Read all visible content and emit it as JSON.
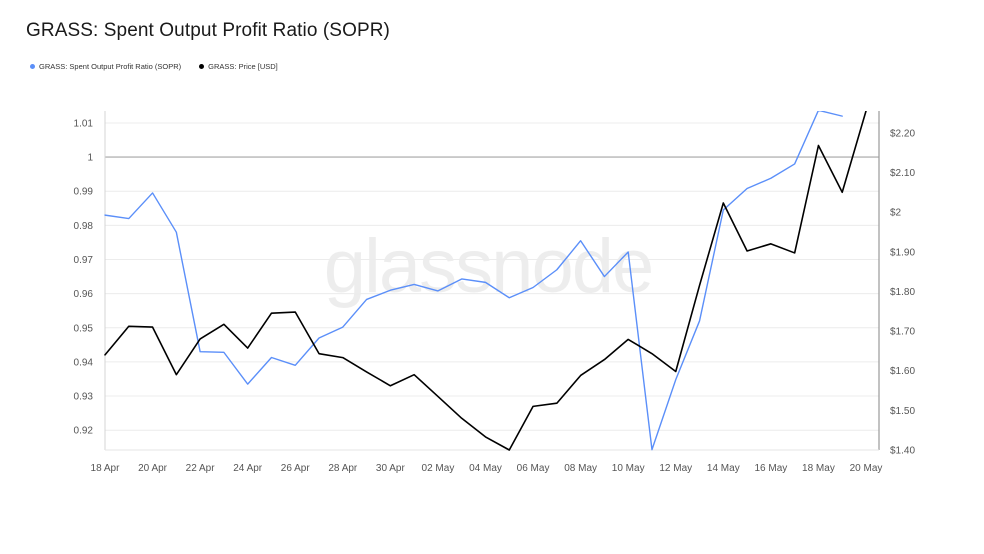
{
  "title": "GRASS: Spent Output Profit Ratio (SOPR)",
  "watermark": "glassnode",
  "legend": [
    {
      "label": "GRASS: Spent Output Profit Ratio (SOPR)",
      "color": "#5b8ff9"
    },
    {
      "label": "GRASS: Price [USD]",
      "color": "#000000"
    }
  ],
  "chart_data": {
    "type": "line",
    "title": "GRASS: Spent Output Profit Ratio (SOPR)",
    "x": [
      "18 Apr",
      "19 Apr",
      "20 Apr",
      "21 Apr",
      "22 Apr",
      "23 Apr",
      "24 Apr",
      "25 Apr",
      "26 Apr",
      "27 Apr",
      "28 Apr",
      "29 Apr",
      "30 Apr",
      "01 May",
      "02 May",
      "03 May",
      "04 May",
      "05 May",
      "06 May",
      "07 May",
      "08 May",
      "09 May",
      "10 May",
      "11 May",
      "12 May",
      "13 May",
      "14 May",
      "15 May",
      "16 May",
      "17 May",
      "18 May",
      "19 May",
      "20 May"
    ],
    "x_tick_labels": [
      "18 Apr",
      "20 Apr",
      "22 Apr",
      "24 Apr",
      "26 Apr",
      "28 Apr",
      "30 Apr",
      "02 May",
      "04 May",
      "06 May",
      "08 May",
      "10 May",
      "12 May",
      "14 May",
      "16 May",
      "18 May",
      "20 May"
    ],
    "y_left": {
      "ylim": [
        0.9142,
        1.0135
      ],
      "ticks": [
        "0.92",
        "0.93",
        "0.94",
        "0.95",
        "0.96",
        "0.97",
        "0.98",
        "0.99",
        "1",
        "1.01"
      ],
      "tick_values": [
        0.92,
        0.93,
        0.94,
        0.95,
        0.96,
        0.97,
        0.98,
        0.99,
        1,
        1.01
      ],
      "reference_line": 1
    },
    "y_right": {
      "ylim": [
        1.4,
        2.255
      ],
      "ticks": [
        "$1.40",
        "$1.50",
        "$1.60",
        "$1.70",
        "$1.80",
        "$1.90",
        "$2",
        "$2.10",
        "$2.20"
      ],
      "tick_values": [
        1.4,
        1.5,
        1.6,
        1.7,
        1.8,
        1.9,
        2.0,
        2.1,
        2.2
      ]
    },
    "series": [
      {
        "name": "GRASS: Spent Output Profit Ratio (SOPR)",
        "axis": "left",
        "color": "#5b8ff9",
        "values": [
          0.983,
          0.982,
          0.9895,
          0.978,
          0.943,
          0.9428,
          0.9335,
          0.9413,
          0.939,
          0.947,
          0.9502,
          0.9583,
          0.961,
          0.9627,
          0.9608,
          0.9643,
          0.9633,
          0.9588,
          0.9618,
          0.967,
          0.9755,
          0.965,
          0.9722,
          0.9143,
          0.9348,
          0.952,
          0.9845,
          0.9908,
          0.9938,
          0.998,
          1.0137,
          1.012,
          null
        ]
      },
      {
        "name": "GRASS: Price [USD]",
        "axis": "right",
        "color": "#000000",
        "values": [
          1.64,
          1.712,
          1.71,
          1.59,
          1.68,
          1.717,
          1.657,
          1.745,
          1.748,
          1.643,
          1.633,
          1.597,
          1.562,
          1.59,
          1.535,
          1.48,
          1.433,
          1.4,
          1.51,
          1.518,
          1.588,
          1.628,
          1.679,
          1.643,
          1.598,
          1.815,
          2.023,
          1.902,
          1.92,
          1.897,
          2.168,
          2.05,
          2.255
        ]
      }
    ],
    "grid": true,
    "legend_position": "top-left"
  }
}
